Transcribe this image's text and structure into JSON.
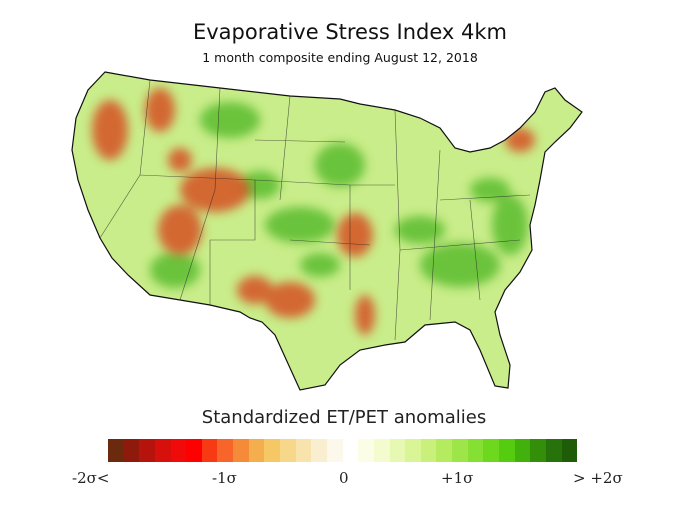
{
  "title": "Evaporative Stress Index 4km",
  "subtitle": "1 month composite ending August 12, 2018",
  "legend": {
    "title": "Standardized  ET/PET anomalies",
    "ticks": [
      "-2σ<",
      "-1σ",
      "0",
      "+1σ",
      "> +2σ"
    ],
    "colors": [
      "#6b2a0e",
      "#8e1a0c",
      "#b5130c",
      "#d7100c",
      "#f00a0a",
      "#fe0000",
      "#f83a14",
      "#f7652a",
      "#f58b38",
      "#f5ae4e",
      "#f5c765",
      "#f7d78a",
      "#f8e3ad",
      "#faeed0",
      "#fdf8ec",
      "#ffffff",
      "#fbfde6",
      "#f3fbcf",
      "#e7f8b2",
      "#d9f596",
      "#c9f07a",
      "#b5ec5f",
      "#9de548",
      "#86df33",
      "#6ed81f",
      "#56cc10",
      "#43b10c",
      "#338f0a",
      "#27720a",
      "#1e5c08"
    ]
  },
  "map_colors": {
    "base": "#c9ed8a",
    "wet": "#3fa81a",
    "dry": "#d6461c",
    "border": "#111111"
  }
}
